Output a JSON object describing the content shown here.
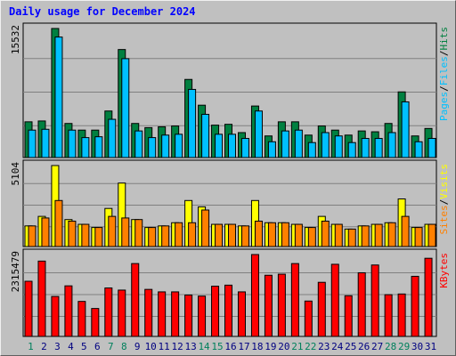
{
  "chart_data": {
    "type": "bar",
    "title": "Daily usage for December 2024",
    "categories": [
      "1",
      "2",
      "3",
      "4",
      "5",
      "6",
      "7",
      "8",
      "9",
      "10",
      "11",
      "12",
      "13",
      "14",
      "15",
      "16",
      "17",
      "18",
      "19",
      "20",
      "21",
      "22",
      "23",
      "24",
      "25",
      "26",
      "27",
      "28",
      "29",
      "30",
      "31"
    ],
    "weekend_days": [
      "1",
      "7",
      "8",
      "14",
      "15",
      "21",
      "22",
      "28",
      "29"
    ],
    "panels": [
      {
        "axis_max_label": "15532",
        "ymax": 15532,
        "right_label": [
          "Pages",
          "/",
          "Files",
          "/",
          "Hits"
        ],
        "series": [
          {
            "name": "Hits",
            "color": "#008040",
            "values": [
              4300,
              4400,
              15532,
              4100,
              3300,
              3300,
              5600,
              13000,
              4100,
              3600,
              3700,
              3800,
              9400,
              6300,
              3900,
              4000,
              3000,
              6200,
              2600,
              4300,
              4300,
              2700,
              3800,
              3300,
              2700,
              3200,
              3100,
              4100,
              7900,
              2600,
              3500
            ]
          },
          {
            "name": "Files",
            "color": "#00c0ff",
            "values": [
              3300,
              3400,
              14500,
              3300,
              2400,
              2500,
              4600,
              11900,
              3200,
              2400,
              2700,
              2800,
              8200,
              5200,
              2800,
              2800,
              2300,
              5600,
              1900,
              3200,
              3300,
              1800,
              3000,
              2600,
              1800,
              2300,
              2300,
              3000,
              6700,
              1900,
              2300
            ]
          },
          {
            "name": "Pages",
            "color": "#00c0ff",
            "values": [
              0,
              0,
              0,
              0,
              0,
              0,
              0,
              0,
              0,
              0,
              0,
              0,
              0,
              0,
              0,
              0,
              0,
              0,
              0,
              0,
              0,
              0,
              0,
              0,
              0,
              0,
              0,
              0,
              0,
              0,
              0
            ]
          }
        ]
      },
      {
        "axis_max_label": "5104",
        "ymax": 5104,
        "right_label": [
          "Sites",
          "/",
          "Visits"
        ],
        "series": [
          {
            "name": "Visits",
            "color": "#ffff00",
            "values": [
              1300,
              1900,
              5104,
              1700,
              1400,
              1200,
              2400,
              4000,
              1700,
              1200,
              1300,
              1500,
              2900,
              2500,
              1400,
              1400,
              1300,
              2900,
              1500,
              1500,
              1400,
              1200,
              1900,
              1400,
              1100,
              1300,
              1400,
              1500,
              3000,
              1200,
              1400
            ]
          },
          {
            "name": "Sites",
            "color": "#ff8000",
            "values": [
              1300,
              1800,
              2900,
              1600,
              1400,
              1200,
              1900,
              1800,
              1700,
              1200,
              1300,
              1500,
              1500,
              2300,
              1400,
              1400,
              1300,
              1600,
              1500,
              1500,
              1400,
              1200,
              1600,
              1400,
              1100,
              1300,
              1400,
              1500,
              1900,
              1200,
              1400
            ]
          }
        ]
      },
      {
        "axis_max_label": "2315479",
        "ymax": 2315479,
        "right_label": [
          "KBytes"
        ],
        "series": [
          {
            "name": "KBytes",
            "color": "#ff0000",
            "values": [
              1560000,
              2130000,
              1130000,
              1430000,
              990000,
              790000,
              1370000,
              1310000,
              2060000,
              1330000,
              1260000,
              1260000,
              1170000,
              1140000,
              1420000,
              1450000,
              1260000,
              2315479,
              1730000,
              1760000,
              2060000,
              1000000,
              1530000,
              2040000,
              1150000,
              1800000,
              2020000,
              1180000,
              1200000,
              1700000,
              2210000
            ]
          }
        ]
      }
    ]
  },
  "colors": {
    "title": "#0000ff",
    "weekday_label": "#000080",
    "weekend_label": "#00805c",
    "plot_bg": "#c0c0c0"
  }
}
